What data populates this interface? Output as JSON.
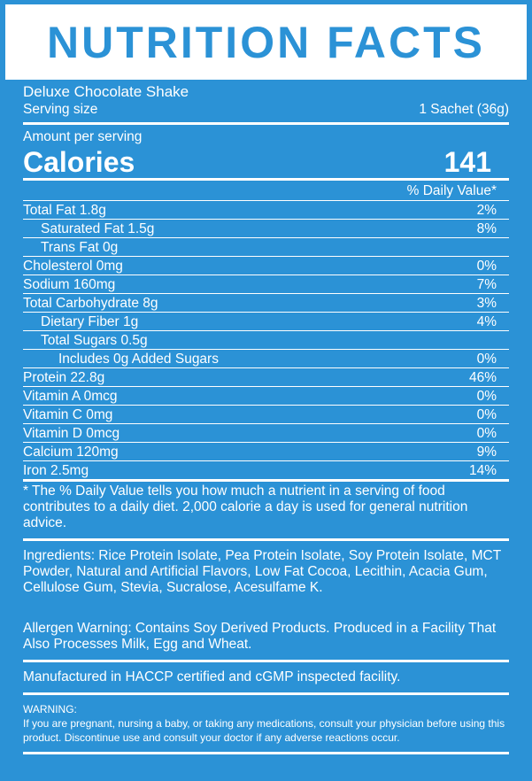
{
  "title": "NUTRITION FACTS",
  "product": "Deluxe Chocolate Shake",
  "serving_size_label": "Serving size",
  "serving_size": "1 Sachet (36g)",
  "amount_per_serving": "Amount per serving",
  "calories_label": "Calories",
  "calories": "141",
  "daily_value_header": "% Daily Value*",
  "rows": [
    {
      "label": "Total Fat 1.8g",
      "dv": "2%"
    },
    {
      "label": "Saturated Fat 1.5g",
      "dv": "8%"
    },
    {
      "label": "Trans Fat 0g",
      "dv": ""
    },
    {
      "label": "Cholesterol 0mg",
      "dv": "0%"
    },
    {
      "label": "Sodium 160mg",
      "dv": "7%"
    },
    {
      "label": "Total Carbohydrate 8g",
      "dv": "3%"
    },
    {
      "label": "Dietary Fiber 1g",
      "dv": "4%"
    },
    {
      "label": "Total Sugars 0.5g",
      "dv": ""
    },
    {
      "label": "Includes 0g Added Sugars",
      "dv": "0%"
    },
    {
      "label": "Protein 22.8g",
      "dv": "46%"
    },
    {
      "label": "Vitamin A 0mcg",
      "dv": "0%"
    },
    {
      "label": "Vitamin C 0mg",
      "dv": "0%"
    },
    {
      "label": "Vitamin D 0mcg",
      "dv": "0%"
    },
    {
      "label": "Calcium 120mg",
      "dv": "9%"
    },
    {
      "label": "Iron 2.5mg",
      "dv": "14%"
    }
  ],
  "footnote": "* The % Daily Value tells you how much a nutrient in a serving of food contributes to a daily diet. 2,000 calorie a day is used for general nutrition advice.",
  "ingredients": "Ingredients: Rice Protein Isolate, Pea Protein Isolate, Soy Protein Isolate, MCT Powder, Natural and Artificial Flavors, Low Fat Cocoa, Lecithin, Acacia Gum, Cellulose Gum, Stevia, Sucralose, Acesulfame K.",
  "allergen": "Allergen Warning: Contains Soy Derived Products. Produced in a Facility That Also Processes Milk, Egg and Wheat.",
  "manufactured": "Manufactured in HACCP certified and cGMP inspected facility.",
  "warning_title": "WARNING:",
  "warning_text": "If you are pregnant, nursing a baby, or taking any medications, consult your physician before using this product. Discontinue use and consult your doctor if any adverse reactions occur."
}
